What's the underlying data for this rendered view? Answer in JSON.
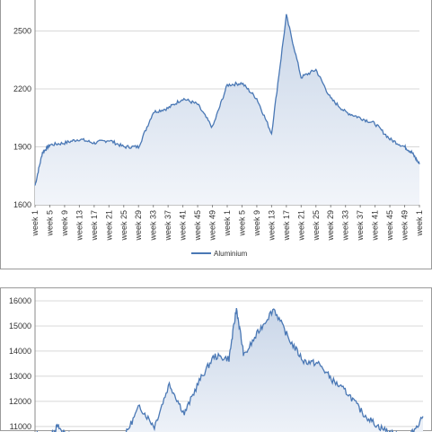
{
  "chart_data": [
    {
      "type": "area",
      "title": "",
      "xlabel": "",
      "ylabel": "",
      "ylim": [
        1600,
        2600
      ],
      "yticks": [
        1600,
        1900,
        2200,
        2500
      ],
      "grid": true,
      "legend": "bottom",
      "categories": [
        "week 1",
        "week 5",
        "week 9",
        "week 13",
        "week 17",
        "week 21",
        "week 25",
        "week 29",
        "week 33",
        "week 37",
        "week 41",
        "week 45",
        "week 49",
        "week 1",
        "week 5",
        "week 9",
        "week 13",
        "week 17",
        "week 21",
        "week 25",
        "week 29",
        "week 33",
        "week 37",
        "week 41",
        "week 45",
        "week 49",
        "week 1"
      ],
      "series": [
        {
          "name": "Aluminium",
          "color": "#4a78b5",
          "x": [
            0,
            0.5,
            1,
            2,
            3,
            4,
            5,
            6,
            7,
            8,
            9,
            10,
            11,
            12,
            13,
            14,
            15,
            16,
            17,
            18,
            19,
            20,
            21,
            22,
            23,
            24,
            25,
            25.5,
            26
          ],
          "values": [
            1700,
            1870,
            1910,
            1920,
            1940,
            1920,
            1935,
            1900,
            1900,
            2080,
            2100,
            2150,
            2120,
            2000,
            2220,
            2230,
            2150,
            1970,
            2580,
            2260,
            2300,
            2150,
            2080,
            2050,
            2020,
            1940,
            1900,
            1870,
            1810
          ]
        }
      ]
    },
    {
      "type": "area",
      "title": "",
      "xlabel": "",
      "ylabel": "",
      "ylim": [
        10600,
        16000
      ],
      "yticks": [
        11000,
        12000,
        13000,
        14000,
        15000,
        16000
      ],
      "grid": true,
      "series": [
        {
          "color": "#4a78b5",
          "x": [
            0,
            1,
            1.5,
            2,
            3,
            4,
            5,
            6,
            7,
            8,
            9,
            10,
            11,
            12,
            13,
            13.5,
            14,
            15,
            16,
            17,
            18,
            19,
            20,
            21,
            22,
            23,
            24,
            25,
            26
          ],
          "values": [
            10700,
            10600,
            11000,
            10700,
            10550,
            10400,
            10300,
            10600,
            11800,
            11000,
            12700,
            11500,
            12800,
            13800,
            13700,
            15700,
            13800,
            14800,
            15700,
            14500,
            13600,
            13500,
            12800,
            12300,
            11500,
            11000,
            10700,
            10500,
            11400
          ]
        }
      ]
    }
  ]
}
